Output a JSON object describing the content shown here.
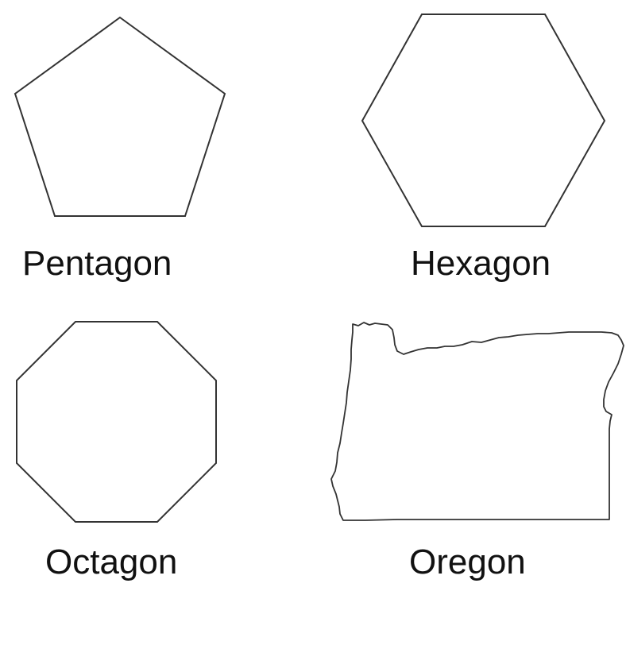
{
  "panels": [
    {
      "id": "pentagon",
      "label": "Pentagon"
    },
    {
      "id": "hexagon",
      "label": "Hexagon"
    },
    {
      "id": "octagon",
      "label": "Octagon"
    },
    {
      "id": "oregon",
      "label": "Oregon"
    }
  ],
  "style": {
    "stroke_color": "#333333",
    "text_color": "#111111",
    "background": "#ffffff"
  }
}
